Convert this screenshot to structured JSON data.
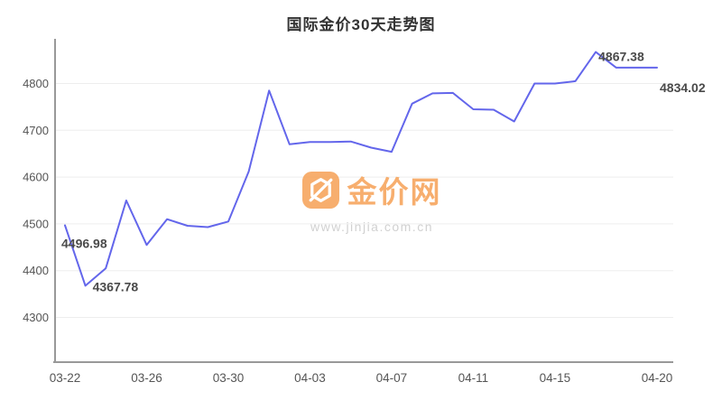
{
  "title": "国际金价30天走势图",
  "watermark": {
    "brand": "金价网",
    "url": "www.jinjia.com.cn",
    "accent_color": "#F6A155",
    "url_color": "#C9C9C9"
  },
  "chart_data": {
    "type": "line",
    "title": "国际金价30天走势图",
    "xlabel": "",
    "ylabel": "",
    "x": [
      "03-22",
      "03-23",
      "03-24",
      "03-25",
      "03-26",
      "03-27",
      "03-28",
      "03-29",
      "03-30",
      "03-31",
      "04-01",
      "04-02",
      "04-03",
      "04-04",
      "04-05",
      "04-06",
      "04-07",
      "04-08",
      "04-09",
      "04-10",
      "04-11",
      "04-12",
      "04-13",
      "04-14",
      "04-15",
      "04-16",
      "04-17",
      "04-18",
      "04-19",
      "04-20"
    ],
    "values": [
      4496.98,
      4367.78,
      4405,
      4550,
      4455,
      4510,
      4496,
      4493,
      4505,
      4612,
      4785,
      4670,
      4675,
      4675,
      4676,
      4663,
      4654,
      4757,
      4779,
      4780,
      4745,
      4744,
      4719,
      4800,
      4800,
      4805,
      4867.38,
      4834,
      4834,
      4834.02
    ],
    "x_tick_indices": [
      0,
      4,
      8,
      12,
      16,
      20,
      24,
      29
    ],
    "y_ticks": [
      4300,
      4400,
      4500,
      4600,
      4700,
      4800
    ],
    "ylim": [
      4205,
      4895
    ],
    "grid": true,
    "legend": "none",
    "line_color": "#6366EB",
    "grid_color": "#EDEDED",
    "axis_color": "#999999",
    "tick_text_color": "#555555",
    "label_text_color": "#4A4A4A",
    "annotations": [
      {
        "index": 0,
        "text": "4496.98",
        "placement": "below-left"
      },
      {
        "index": 1,
        "text": "4367.78",
        "placement": "below-right"
      },
      {
        "index": 26,
        "text": "4867.38",
        "placement": "right"
      },
      {
        "index": 29,
        "text": "4834.02",
        "placement": "far-below-right"
      }
    ]
  }
}
